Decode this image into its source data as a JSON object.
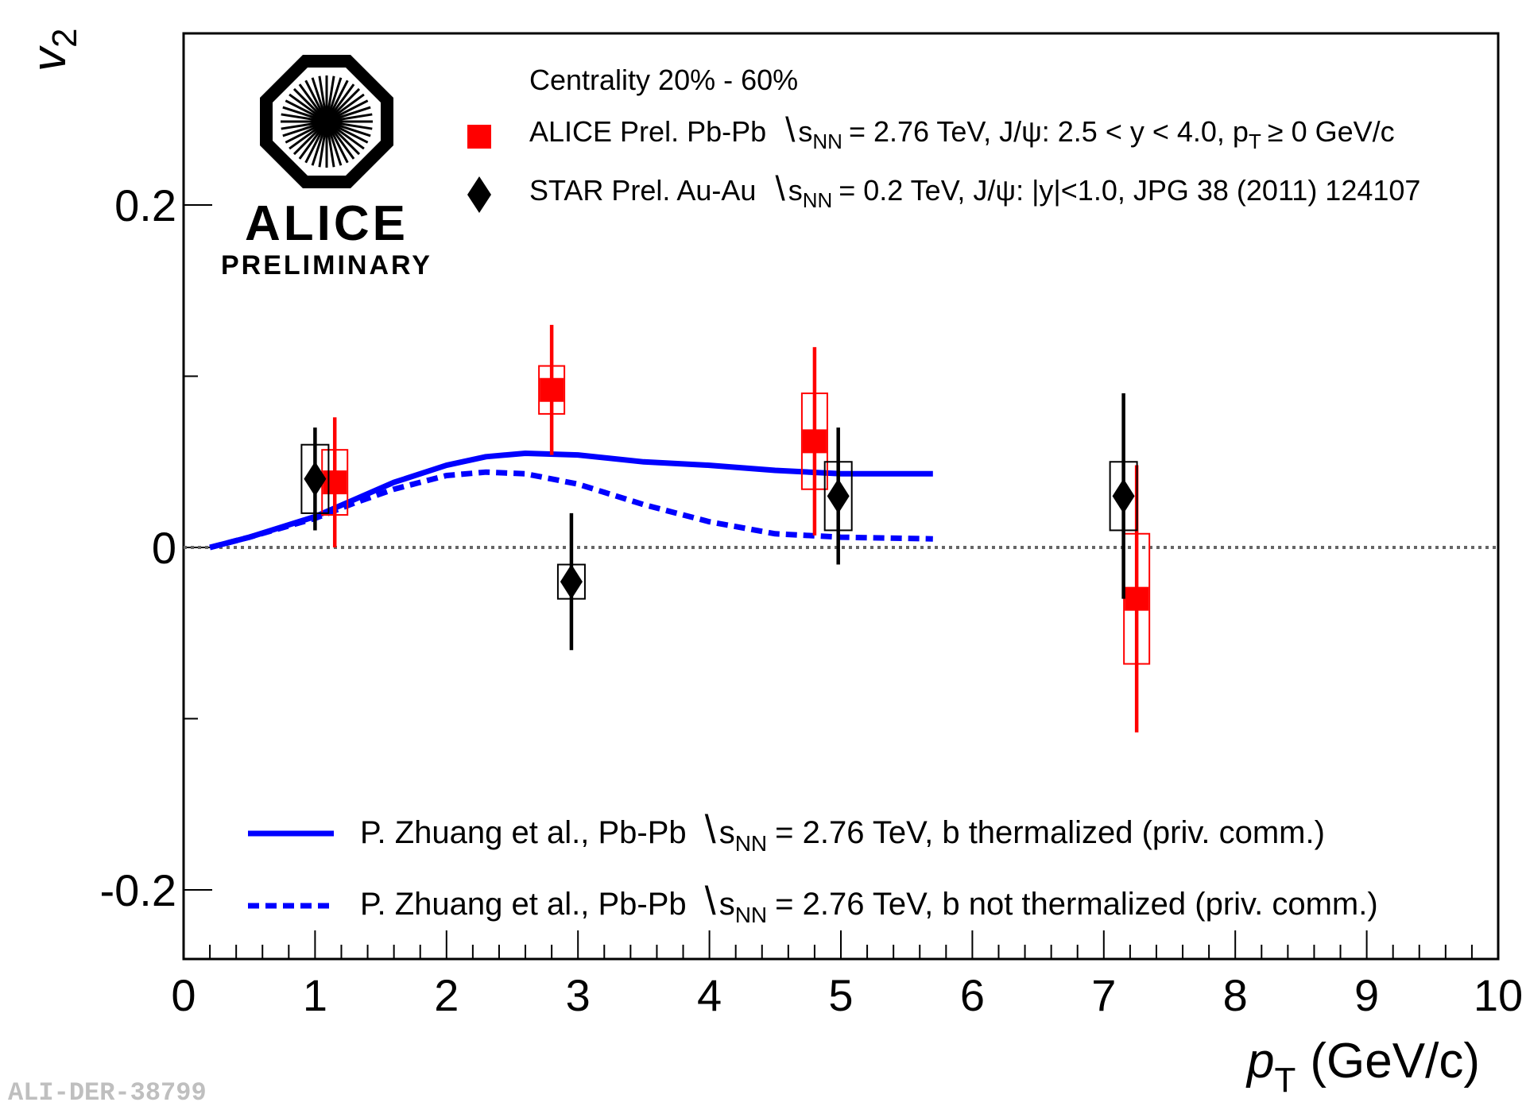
{
  "chart_data": {
    "type": "scatter",
    "xlabel_main": "p",
    "xlabel_sub": "T",
    "xlabel_units": "(GeV/c)",
    "ylabel_main": "v",
    "ylabel_sub": "2",
    "xlim": [
      0,
      10
    ],
    "ylim": [
      -0.24,
      0.3
    ],
    "xticks": [
      "0",
      "1",
      "2",
      "3",
      "4",
      "5",
      "6",
      "7",
      "8",
      "9",
      "10"
    ],
    "yticks": [
      "-0.2",
      "0",
      "0.2"
    ],
    "yticks_values": [
      -0.2,
      0,
      0.2
    ],
    "zero_line": true,
    "logo": {
      "name": "ALICE",
      "subtitle": "PRELIMINARY"
    },
    "watermark": "ALI-DER-38799",
    "legend_header": "Centrality 20% - 60%",
    "legend_entries": [
      {
        "id": "alice",
        "pre": "ALICE Prel. Pb-Pb",
        "sqrt_s": "s",
        "sqrt_sub": "NN",
        "post": "= 2.76 TeV, J/ψ: 2.5 < y < 4.0, p",
        "post_sub": "T",
        "post_end": "≥ 0 GeV/c"
      },
      {
        "id": "star",
        "pre": "STAR Prel. Au-Au",
        "sqrt_s": "s",
        "sqrt_sub": "NN",
        "post": "= 0.2 TeV, J/ψ: |y|<1.0, JPG 38 (2011) 124107"
      }
    ],
    "model_legend": [
      {
        "id": "therm",
        "pre": "P. Zhuang et al., Pb-Pb",
        "sqrt_s": "s",
        "sqrt_sub": "NN",
        "post": "= 2.76 TeV, b thermalized (priv. comm.)"
      },
      {
        "id": "notherm",
        "pre": "P. Zhuang et al., Pb-Pb",
        "sqrt_s": "s",
        "sqrt_sub": "NN",
        "post": "= 2.76 TeV, b not thermalized (priv. comm.)"
      }
    ],
    "series": [
      {
        "name": "ALICE Prel. Pb-Pb",
        "color": "#ff0000",
        "marker": "square",
        "points": [
          {
            "x": 1.15,
            "y": 0.038,
            "stat_lo": 0.038,
            "stat_hi": 0.038,
            "sys_lo": 0.019,
            "sys_hi": 0.019
          },
          {
            "x": 2.8,
            "y": 0.092,
            "stat_lo": 0.038,
            "stat_hi": 0.038,
            "sys_lo": 0.014,
            "sys_hi": 0.014
          },
          {
            "x": 4.8,
            "y": 0.062,
            "stat_lo": 0.055,
            "stat_hi": 0.055,
            "sys_lo": 0.028,
            "sys_hi": 0.028
          },
          {
            "x": 7.25,
            "y": -0.03,
            "stat_lo": 0.078,
            "stat_hi": 0.078,
            "sys_lo": 0.038,
            "sys_hi": 0.038
          }
        ]
      },
      {
        "name": "STAR Prel. Au-Au",
        "color": "#000000",
        "marker": "diamond",
        "points": [
          {
            "x": 1.0,
            "y": 0.04,
            "stat_lo": 0.03,
            "stat_hi": 0.03,
            "sys_lo": 0.02,
            "sys_hi": 0.02
          },
          {
            "x": 2.95,
            "y": -0.02,
            "stat_lo": 0.04,
            "stat_hi": 0.04,
            "sys_lo": 0.01,
            "sys_hi": 0.01
          },
          {
            "x": 4.98,
            "y": 0.03,
            "stat_lo": 0.04,
            "stat_hi": 0.04,
            "sys_lo": 0.02,
            "sys_hi": 0.02
          },
          {
            "x": 7.15,
            "y": 0.03,
            "stat_lo": 0.06,
            "stat_hi": 0.06,
            "sys_lo": 0.02,
            "sys_hi": 0.02
          }
        ]
      }
    ],
    "curves": [
      {
        "name": "b thermalized",
        "color": "#0000ff",
        "style": "solid",
        "x": [
          0.2,
          0.5,
          1.0,
          1.3,
          1.6,
          2.0,
          2.3,
          2.6,
          3.0,
          3.5,
          4.0,
          4.5,
          5.0,
          5.7
        ],
        "y": [
          0.0,
          0.006,
          0.018,
          0.028,
          0.038,
          0.048,
          0.053,
          0.055,
          0.054,
          0.05,
          0.048,
          0.045,
          0.043,
          0.043
        ]
      },
      {
        "name": "b not thermalized",
        "color": "#0000ff",
        "style": "dashed",
        "x": [
          0.2,
          0.5,
          1.0,
          1.3,
          1.6,
          2.0,
          2.3,
          2.6,
          3.0,
          3.5,
          4.0,
          4.5,
          5.0,
          5.7
        ],
        "y": [
          0.0,
          0.006,
          0.017,
          0.026,
          0.034,
          0.042,
          0.044,
          0.043,
          0.037,
          0.025,
          0.015,
          0.008,
          0.006,
          0.005
        ]
      }
    ]
  }
}
